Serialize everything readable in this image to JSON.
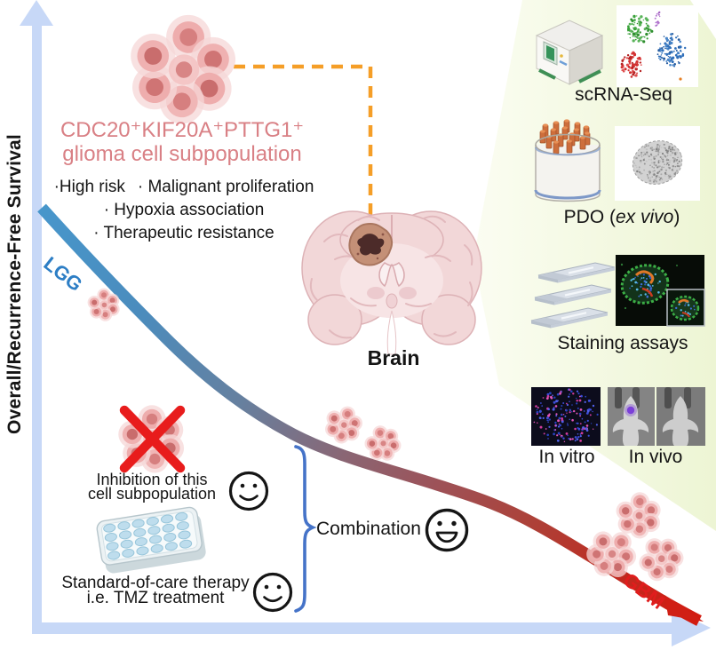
{
  "figure": {
    "y_axis_label": "Overall/Recurrence-Free Survival",
    "curve": {
      "start_label": "LGG",
      "end_label": "GBM",
      "start_color": "#2d7ec5",
      "end_color": "#e01d1d"
    },
    "subpopulation": {
      "title_line1": "CDC20⁺KIF20A⁺PTTG1⁺",
      "title_line2": "glioma cell subpopulation",
      "title_color": "#d98085",
      "bullets_row1": [
        "·High risk",
        "· Malignant proliferation"
      ],
      "bullets_row2": "· Hypoxia association",
      "bullets_row3": "· Therapeutic resistance"
    },
    "brain_label": "Brain",
    "methods_panel": {
      "background_color": "#f1f7dd",
      "scrna_label": "scRNA-Seq",
      "pdo_label_prefix": "PDO (",
      "pdo_label_italic": "ex vivo",
      "pdo_label_suffix": ")",
      "staining_label": "Staining assays",
      "invitro_label": "In vitro",
      "invivo_label": "In vivo"
    },
    "interventions": {
      "inhibition_line1": "Inhibition of this",
      "inhibition_line2": "cell subpopulation",
      "soc_line1": "Standard-of-care therapy",
      "soc_line2": "i.e. TMZ treatment",
      "combination_label": "Combination"
    },
    "accent_colors": {
      "dashed_line": "#f59e27",
      "axis": "#c7d8f7",
      "brace": "#4573c8",
      "inhibition_cross": "#e51a1a"
    }
  }
}
